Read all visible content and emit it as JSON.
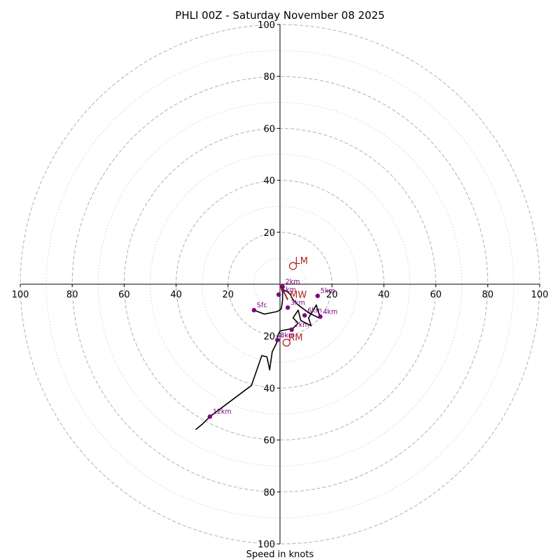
{
  "chart_data": {
    "type": "hodograph",
    "title": "PHLI 00Z - Saturday November 08 2025",
    "xlabel": "Speed in knots",
    "range": [
      -100,
      100
    ],
    "ring_major": [
      20,
      40,
      60,
      80,
      100
    ],
    "ring_minor": [
      10,
      30,
      50,
      70,
      90
    ],
    "x_ticks": [
      "100",
      "80",
      "60",
      "40",
      "20",
      "20",
      "40",
      "60",
      "80",
      "100"
    ],
    "x_tick_values": [
      -100,
      -80,
      -60,
      -40,
      -20,
      20,
      40,
      60,
      80,
      100
    ],
    "y_ticks": [
      "100",
      "80",
      "60",
      "40",
      "20",
      "20",
      "40",
      "60",
      "80",
      "100"
    ],
    "y_tick_values": [
      100,
      80,
      60,
      40,
      20,
      -20,
      -40,
      -60,
      -80,
      -100
    ],
    "wind_trace": [
      [
        -10,
        -10
      ],
      [
        -6,
        -11.5
      ],
      [
        -1,
        -10.5
      ],
      [
        0.5,
        -9.5
      ],
      [
        1,
        -6
      ],
      [
        1,
        -3
      ],
      [
        0,
        0
      ],
      [
        1,
        -2
      ],
      [
        3,
        -3
      ],
      [
        4,
        -4
      ],
      [
        5,
        -6
      ],
      [
        7,
        -8
      ],
      [
        11,
        -11
      ],
      [
        13,
        -12
      ],
      [
        15,
        -13
      ],
      [
        15.5,
        -12.5
      ],
      [
        14.5,
        -10
      ],
      [
        14,
        -8
      ],
      [
        11,
        -13
      ],
      [
        12,
        -16
      ],
      [
        8,
        -14
      ],
      [
        7,
        -10
      ],
      [
        5,
        -13
      ],
      [
        7,
        -15
      ],
      [
        5,
        -17
      ],
      [
        0,
        -18
      ],
      [
        -1,
        -20
      ],
      [
        -1,
        -22
      ],
      [
        -3,
        -26
      ],
      [
        -4,
        -33
      ],
      [
        -5,
        -28
      ],
      [
        -7,
        -27.5
      ],
      [
        -11,
        -39
      ],
      [
        -27,
        -51
      ],
      [
        -30,
        -54
      ],
      [
        -32.5,
        -56
      ]
    ],
    "points": [
      {
        "label": "Sfc",
        "u": -10,
        "v": -10
      },
      {
        "label": "1km",
        "u": -0.5,
        "v": -4
      },
      {
        "label": "2km",
        "u": 1,
        "v": -1
      },
      {
        "label": "3km",
        "u": 3,
        "v": -9
      },
      {
        "label": "4km",
        "u": 15.5,
        "v": -12.5
      },
      {
        "label": "5km",
        "u": 14.5,
        "v": -4.5
      },
      {
        "label": "6km",
        "u": 9.5,
        "v": -12
      },
      {
        "label": "7km",
        "u": 4.5,
        "v": -17.5
      },
      {
        "label": "8km",
        "u": -1,
        "v": -21.5
      },
      {
        "label": "12km",
        "u": -27,
        "v": -51
      }
    ],
    "motions": [
      {
        "label": "LM",
        "u": 5,
        "v": 7
      },
      {
        "label": "MW",
        "u": 3,
        "v": -6
      },
      {
        "label": "RM",
        "u": 2.5,
        "v": -22.5
      }
    ],
    "mean_wind_vector": {
      "u": 3,
      "v": -6
    },
    "colors": {
      "trace": "#000000",
      "points": "#800080",
      "motion": "#b22222",
      "ring": "#b0b0b0",
      "axis": "#000000"
    }
  }
}
